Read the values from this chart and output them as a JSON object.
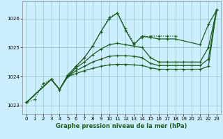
{
  "background_color": "#cceeff",
  "grid_color": "#99cccc",
  "line_color": "#1a5c1a",
  "title": "Graphe pression niveau de la mer (hPa)",
  "xlim": [
    -0.5,
    23.5
  ],
  "ylim": [
    1022.7,
    1026.6
  ],
  "yticks": [
    1023,
    1024,
    1025,
    1026
  ],
  "xticks": [
    0,
    1,
    2,
    3,
    4,
    5,
    6,
    7,
    8,
    9,
    10,
    11,
    12,
    13,
    14,
    15,
    16,
    17,
    18,
    19,
    20,
    21,
    22,
    23
  ],
  "series": [
    {
      "x": [
        0,
        1,
        2,
        3,
        4,
        5,
        6,
        7,
        8,
        9,
        10,
        11,
        12,
        13,
        14,
        15,
        16,
        17,
        18
      ],
      "y": [
        1023.1,
        1023.2,
        1023.75,
        1023.9,
        1023.55,
        1024.05,
        1024.35,
        1024.65,
        1025.05,
        1025.55,
        1026.05,
        1026.2,
        1025.65,
        1025.15,
        1025.35,
        1025.4,
        1025.4,
        1025.4,
        1025.4
      ],
      "linestyle": ":",
      "linewidth": 0.9,
      "markersize": 3.5
    },
    {
      "x": [
        0,
        3,
        4,
        5,
        6,
        7,
        8,
        9,
        10,
        11,
        12,
        13,
        14,
        15,
        16,
        17,
        18,
        21,
        22,
        23
      ],
      "y": [
        1023.1,
        1023.9,
        1023.55,
        1024.05,
        1024.35,
        1024.65,
        1025.05,
        1025.55,
        1026.0,
        1026.2,
        1025.6,
        1025.1,
        1025.4,
        1025.35,
        1025.3,
        1025.3,
        1025.3,
        1025.1,
        1025.8,
        1026.3
      ],
      "linestyle": "-",
      "linewidth": 0.9,
      "markersize": 3.5
    },
    {
      "x": [
        0,
        3,
        4,
        5,
        6,
        7,
        8,
        9,
        10,
        11,
        12,
        13,
        14,
        15,
        16,
        17,
        18,
        19,
        20,
        21,
        22,
        23
      ],
      "y": [
        1023.1,
        1023.9,
        1023.55,
        1024.0,
        1024.3,
        1024.5,
        1024.75,
        1024.95,
        1025.1,
        1025.15,
        1025.1,
        1025.05,
        1025.0,
        1024.65,
        1024.5,
        1024.5,
        1024.5,
        1024.5,
        1024.5,
        1024.5,
        1025.0,
        1026.3
      ],
      "linestyle": "-",
      "linewidth": 0.9,
      "markersize": 3.5
    },
    {
      "x": [
        0,
        3,
        4,
        5,
        6,
        7,
        8,
        9,
        10,
        11,
        12,
        13,
        14,
        15,
        16,
        17,
        18,
        19,
        20,
        21,
        22,
        23
      ],
      "y": [
        1023.1,
        1023.9,
        1023.55,
        1024.0,
        1024.2,
        1024.35,
        1024.5,
        1024.6,
        1024.7,
        1024.72,
        1024.72,
        1024.7,
        1024.65,
        1024.45,
        1024.38,
        1024.38,
        1024.38,
        1024.38,
        1024.38,
        1024.38,
        1024.6,
        1026.3
      ],
      "linestyle": "-",
      "linewidth": 0.9,
      "markersize": 3.5
    },
    {
      "x": [
        0,
        3,
        4,
        5,
        6,
        7,
        8,
        9,
        10,
        11,
        12,
        13,
        14,
        15,
        16,
        17,
        18,
        19,
        20,
        21,
        22,
        23
      ],
      "y": [
        1023.1,
        1023.9,
        1023.55,
        1024.0,
        1024.1,
        1024.2,
        1024.28,
        1024.35,
        1024.4,
        1024.42,
        1024.42,
        1024.4,
        1024.38,
        1024.3,
        1024.25,
        1024.25,
        1024.25,
        1024.25,
        1024.25,
        1024.25,
        1024.35,
        1026.3
      ],
      "linestyle": "-",
      "linewidth": 0.9,
      "markersize": 3.5
    }
  ]
}
